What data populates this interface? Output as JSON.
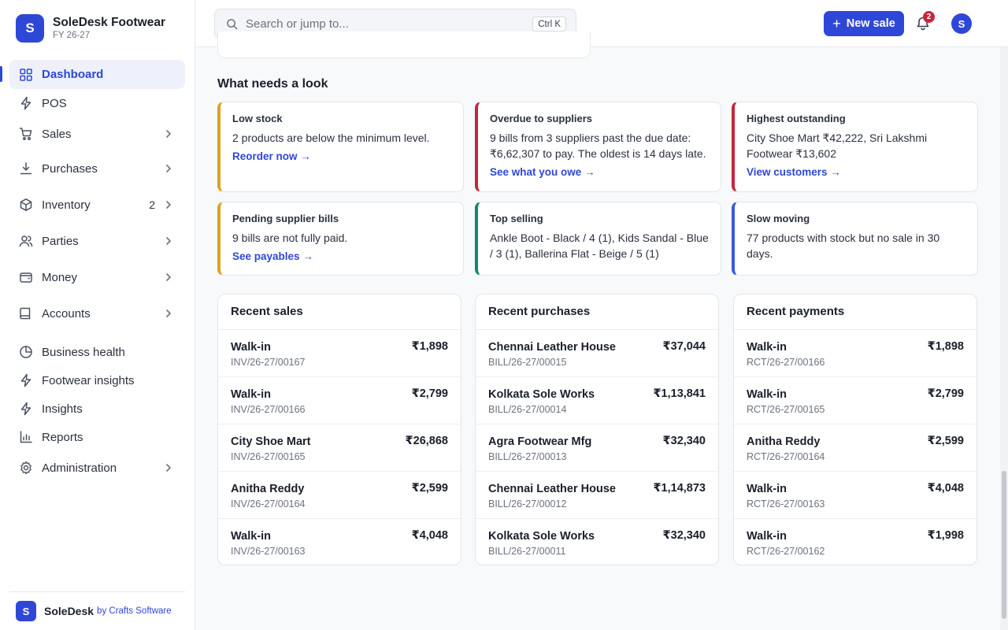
{
  "brand": {
    "logo_letter": "S",
    "name": "SoleDesk Footwear",
    "fiscal_year": "FY 26-27"
  },
  "nav": [
    {
      "id": "dashboard",
      "label": "Dashboard",
      "icon": "grid-icon",
      "active": true
    },
    {
      "id": "pos",
      "label": "POS",
      "icon": "lightning-icon"
    },
    {
      "id": "sales",
      "label": "Sales",
      "icon": "cart-icon",
      "chevron": true
    },
    {
      "id": "purchases",
      "label": "Purchases",
      "icon": "download-icon",
      "chevron": true
    },
    {
      "id": "inventory",
      "label": "Inventory",
      "icon": "box-icon",
      "chevron": true,
      "badge": "2"
    },
    {
      "id": "parties",
      "label": "Parties",
      "icon": "users-icon",
      "chevron": true
    },
    {
      "id": "money",
      "label": "Money",
      "icon": "wallet-icon",
      "chevron": true
    },
    {
      "id": "accounts",
      "label": "Accounts",
      "icon": "book-icon",
      "chevron": true
    },
    {
      "id": "business-health",
      "label": "Business health",
      "icon": "pie-chart-icon"
    },
    {
      "id": "footwear-insights",
      "label": "Footwear insights",
      "icon": "lightning-icon"
    },
    {
      "id": "insights",
      "label": "Insights",
      "icon": "lightning-icon"
    },
    {
      "id": "reports",
      "label": "Reports",
      "icon": "bar-chart-icon"
    },
    {
      "id": "administration",
      "label": "Administration",
      "icon": "gear-icon",
      "chevron": true
    }
  ],
  "footer": {
    "logo_letter": "S",
    "name": "SoleDesk",
    "by": "by Crafts Software"
  },
  "topbar": {
    "search_placeholder": "Search or jump to...",
    "shortcut": "Ctrl K",
    "new_sale_label": "New sale",
    "notification_count": "2",
    "avatar_letter": "S"
  },
  "attention": {
    "title": "What needs a look",
    "cards": [
      {
        "title": "Low stock",
        "text": "2 products are below the minimum level.",
        "link": "Reorder now →",
        "color": "#e0a021"
      },
      {
        "title": "Overdue to suppliers",
        "text": "9 bills from 3 suppliers past the due date: ₹6,62,307 to pay. The oldest is 14 days late.",
        "link": "See what you owe →",
        "color": "#c7263b"
      },
      {
        "title": "Highest outstanding",
        "text": "City Shoe Mart ₹42,222, Sri Lakshmi Footwear ₹13,602",
        "link": "View customers →",
        "color": "#c7263b"
      },
      {
        "title": "Pending supplier bills",
        "text": "9 bills are not fully paid.",
        "link": "See payables →",
        "color": "#e0a021"
      },
      {
        "title": "Top selling",
        "text": "Ankle Boot - Black / 4 (1), Kids Sandal - Blue / 3 (1), Ballerina Flat - Beige / 5 (1)",
        "link": "",
        "color": "#0f8a6a"
      },
      {
        "title": "Slow moving",
        "text": "77 products with stock but no sale in 30 days.",
        "link": "",
        "color": "#3b5bdb"
      }
    ]
  },
  "recent_sales": {
    "title": "Recent sales",
    "rows": [
      {
        "name": "Walk-in",
        "ref": "INV/26-27/00167",
        "amount": "₹1,898"
      },
      {
        "name": "Walk-in",
        "ref": "INV/26-27/00166",
        "amount": "₹2,799"
      },
      {
        "name": "City Shoe Mart",
        "ref": "INV/26-27/00165",
        "amount": "₹26,868"
      },
      {
        "name": "Anitha Reddy",
        "ref": "INV/26-27/00164",
        "amount": "₹2,599"
      },
      {
        "name": "Walk-in",
        "ref": "INV/26-27/00163",
        "amount": "₹4,048"
      }
    ]
  },
  "recent_purchases": {
    "title": "Recent purchases",
    "rows": [
      {
        "name": "Chennai Leather House",
        "ref": "BILL/26-27/00015",
        "amount": "₹37,044"
      },
      {
        "name": "Kolkata Sole Works",
        "ref": "BILL/26-27/00014",
        "amount": "₹1,13,841"
      },
      {
        "name": "Agra Footwear Mfg",
        "ref": "BILL/26-27/00013",
        "amount": "₹32,340"
      },
      {
        "name": "Chennai Leather House",
        "ref": "BILL/26-27/00012",
        "amount": "₹1,14,873"
      },
      {
        "name": "Kolkata Sole Works",
        "ref": "BILL/26-27/00011",
        "amount": "₹32,340"
      }
    ]
  },
  "recent_payments": {
    "title": "Recent payments",
    "rows": [
      {
        "name": "Walk-in",
        "ref": "RCT/26-27/00166",
        "amount": "₹1,898"
      },
      {
        "name": "Walk-in",
        "ref": "RCT/26-27/00165",
        "amount": "₹2,799"
      },
      {
        "name": "Anitha Reddy",
        "ref": "RCT/26-27/00164",
        "amount": "₹2,599"
      },
      {
        "name": "Walk-in",
        "ref": "RCT/26-27/00163",
        "amount": "₹4,048"
      },
      {
        "name": "Walk-in",
        "ref": "RCT/26-27/00162",
        "amount": "₹1,998"
      }
    ]
  }
}
